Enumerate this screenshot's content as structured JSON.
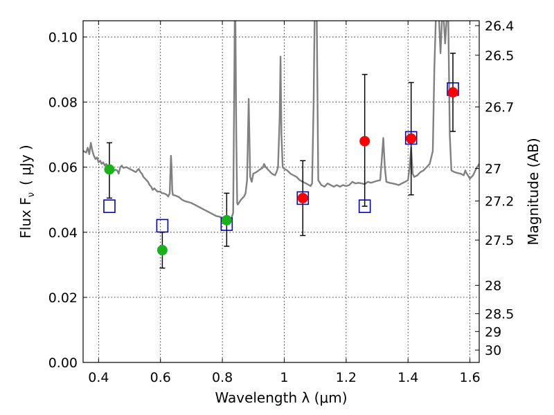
{
  "chart_data": {
    "type": "scatter",
    "xlabel": "Wavelength  λ (μm)",
    "ylabel": "Flux  F",
    "ylabel_sub": "ν",
    "ylabel_unit": "( μJy )",
    "y2label": "Magnitude (AB)",
    "xlim": [
      0.35,
      1.63
    ],
    "ylim": [
      0.0,
      0.105
    ],
    "x_ticks": [
      0.4,
      0.6,
      0.8,
      1.0,
      1.2,
      1.4,
      1.6
    ],
    "x_tick_labels": [
      "0.4",
      "0.6",
      "0.8",
      "1",
      "1.2",
      "1.4",
      "1.6"
    ],
    "y_ticks": [
      0.0,
      0.02,
      0.04,
      0.06,
      0.08,
      0.1
    ],
    "y_tick_labels": [
      "0.00",
      "0.02",
      "0.04",
      "0.06",
      "0.08",
      "0.10"
    ],
    "y2_ticks": [
      {
        "label": "26.4",
        "flux": 0.1035
      },
      {
        "label": "26.5",
        "flux": 0.0944
      },
      {
        "label": "26.7",
        "flux": 0.0785
      },
      {
        "label": "27",
        "flux": 0.0596
      },
      {
        "label": "27.2",
        "flux": 0.0496
      },
      {
        "label": "27.5",
        "flux": 0.0376
      },
      {
        "label": "28",
        "flux": 0.0237
      },
      {
        "label": "28.5",
        "flux": 0.015
      },
      {
        "label": "29",
        "flux": 0.0095
      },
      {
        "label": "30",
        "flux": 0.0038
      }
    ],
    "grid": true,
    "series": [
      {
        "marker": "circle",
        "color": "#19b319",
        "points": [
          {
            "x": 0.435,
            "y": 0.0593,
            "lo": 0.0505,
            "hi": 0.0675
          },
          {
            "x": 0.606,
            "y": 0.0345,
            "lo": 0.029,
            "hi": 0.04
          },
          {
            "x": 0.814,
            "y": 0.0437,
            "lo": 0.0357,
            "hi": 0.052
          }
        ]
      },
      {
        "marker": "circle",
        "color": "#ff0000",
        "points": [
          {
            "x": 1.06,
            "y": 0.0505,
            "lo": 0.039,
            "hi": 0.062
          },
          {
            "x": 1.26,
            "y": 0.068,
            "lo": 0.048,
            "hi": 0.0885
          },
          {
            "x": 1.41,
            "y": 0.0688,
            "lo": 0.0515,
            "hi": 0.086
          },
          {
            "x": 1.545,
            "y": 0.083,
            "lo": 0.071,
            "hi": 0.095
          }
        ]
      },
      {
        "marker": "open-square",
        "color": "#0000cc",
        "points": [
          {
            "x": 0.435,
            "y": 0.048
          },
          {
            "x": 0.606,
            "y": 0.042
          },
          {
            "x": 0.814,
            "y": 0.0425
          },
          {
            "x": 1.06,
            "y": 0.0505
          },
          {
            "x": 1.26,
            "y": 0.048
          },
          {
            "x": 1.41,
            "y": 0.069
          },
          {
            "x": 1.545,
            "y": 0.084
          }
        ]
      }
    ],
    "model_spectrum": {
      "color": "#808080",
      "points": [
        [
          0.35,
          0.065
        ],
        [
          0.36,
          0.0645
        ],
        [
          0.365,
          0.066
        ],
        [
          0.37,
          0.064
        ],
        [
          0.375,
          0.0675
        ],
        [
          0.38,
          0.065
        ],
        [
          0.385,
          0.0635
        ],
        [
          0.39,
          0.0625
        ],
        [
          0.395,
          0.063
        ],
        [
          0.4,
          0.0615
        ],
        [
          0.405,
          0.062
        ],
        [
          0.41,
          0.061
        ],
        [
          0.415,
          0.0615
        ],
        [
          0.42,
          0.0605
        ],
        [
          0.425,
          0.061
        ],
        [
          0.43,
          0.06
        ],
        [
          0.435,
          0.0605
        ],
        [
          0.44,
          0.0595
        ],
        [
          0.445,
          0.06
        ],
        [
          0.45,
          0.059
        ],
        [
          0.455,
          0.0592
        ],
        [
          0.46,
          0.059
        ],
        [
          0.465,
          0.058
        ],
        [
          0.47,
          0.06
        ],
        [
          0.475,
          0.0605
        ],
        [
          0.48,
          0.0598
        ],
        [
          0.49,
          0.06
        ],
        [
          0.5,
          0.0595
        ],
        [
          0.51,
          0.059
        ],
        [
          0.52,
          0.0585
        ],
        [
          0.53,
          0.0595
        ],
        [
          0.535,
          0.0585
        ],
        [
          0.54,
          0.058
        ],
        [
          0.545,
          0.057
        ],
        [
          0.55,
          0.0565
        ],
        [
          0.555,
          0.056
        ],
        [
          0.56,
          0.0555
        ],
        [
          0.565,
          0.0545
        ],
        [
          0.57,
          0.054
        ],
        [
          0.575,
          0.053
        ],
        [
          0.58,
          0.0535
        ],
        [
          0.585,
          0.053
        ],
        [
          0.59,
          0.0525
        ],
        [
          0.595,
          0.0525
        ],
        [
          0.6,
          0.0525
        ],
        [
          0.605,
          0.052
        ],
        [
          0.61,
          0.052
        ],
        [
          0.615,
          0.0518
        ],
        [
          0.62,
          0.0515
        ],
        [
          0.625,
          0.051
        ],
        [
          0.63,
          0.052
        ],
        [
          0.632,
          0.058
        ],
        [
          0.634,
          0.0635
        ],
        [
          0.636,
          0.06
        ],
        [
          0.638,
          0.053
        ],
        [
          0.64,
          0.0515
        ],
        [
          0.65,
          0.0512
        ],
        [
          0.66,
          0.0508
        ],
        [
          0.67,
          0.05
        ],
        [
          0.68,
          0.0495
        ],
        [
          0.69,
          0.0493
        ],
        [
          0.7,
          0.049
        ],
        [
          0.71,
          0.0485
        ],
        [
          0.72,
          0.048
        ],
        [
          0.73,
          0.0475
        ],
        [
          0.74,
          0.047
        ],
        [
          0.75,
          0.0465
        ],
        [
          0.76,
          0.046
        ],
        [
          0.77,
          0.0455
        ],
        [
          0.78,
          0.045
        ],
        [
          0.79,
          0.0448
        ],
        [
          0.8,
          0.0445
        ],
        [
          0.81,
          0.044
        ],
        [
          0.815,
          0.0438
        ],
        [
          0.82,
          0.0435
        ],
        [
          0.825,
          0.044
        ],
        [
          0.83,
          0.0445
        ],
        [
          0.835,
          0.046
        ],
        [
          0.838,
          0.08
        ],
        [
          0.84,
          0.106
        ],
        [
          0.842,
          0.106
        ],
        [
          0.845,
          0.07
        ],
        [
          0.848,
          0.049
        ],
        [
          0.85,
          0.0485
        ],
        [
          0.86,
          0.05
        ],
        [
          0.87,
          0.051
        ],
        [
          0.875,
          0.052
        ],
        [
          0.88,
          0.056
        ],
        [
          0.885,
          0.081
        ],
        [
          0.89,
          0.057
        ],
        [
          0.895,
          0.0555
        ],
        [
          0.9,
          0.058
        ],
        [
          0.91,
          0.0585
        ],
        [
          0.92,
          0.0592
        ],
        [
          0.93,
          0.0598
        ],
        [
          0.935,
          0.061
        ],
        [
          0.94,
          0.06
        ],
        [
          0.95,
          0.059
        ],
        [
          0.96,
          0.058
        ],
        [
          0.97,
          0.0575
        ],
        [
          0.975,
          0.0585
        ],
        [
          0.98,
          0.06
        ],
        [
          0.985,
          0.075
        ],
        [
          0.988,
          0.094
        ],
        [
          0.991,
          0.07
        ],
        [
          0.995,
          0.06
        ],
        [
          1.0,
          0.0595
        ],
        [
          1.01,
          0.059
        ],
        [
          1.02,
          0.058
        ],
        [
          1.03,
          0.0575
        ],
        [
          1.04,
          0.057
        ],
        [
          1.05,
          0.056
        ],
        [
          1.06,
          0.0555
        ],
        [
          1.07,
          0.055
        ],
        [
          1.08,
          0.0545
        ],
        [
          1.085,
          0.0542
        ],
        [
          1.09,
          0.055
        ],
        [
          1.095,
          0.08
        ],
        [
          1.098,
          0.106
        ],
        [
          1.105,
          0.106
        ],
        [
          1.11,
          0.056
        ],
        [
          1.12,
          0.0545
        ],
        [
          1.13,
          0.054
        ],
        [
          1.14,
          0.055
        ],
        [
          1.15,
          0.0545
        ],
        [
          1.16,
          0.054
        ],
        [
          1.17,
          0.0545
        ],
        [
          1.18,
          0.054
        ],
        [
          1.19,
          0.0545
        ],
        [
          1.2,
          0.0542
        ],
        [
          1.21,
          0.0545
        ],
        [
          1.22,
          0.0555
        ],
        [
          1.23,
          0.055
        ],
        [
          1.24,
          0.0552
        ],
        [
          1.25,
          0.055
        ],
        [
          1.26,
          0.0548
        ],
        [
          1.27,
          0.0555
        ],
        [
          1.28,
          0.0552
        ],
        [
          1.29,
          0.0555
        ],
        [
          1.3,
          0.0558
        ],
        [
          1.31,
          0.056
        ],
        [
          1.315,
          0.062
        ],
        [
          1.32,
          0.069
        ],
        [
          1.325,
          0.06
        ],
        [
          1.33,
          0.0555
        ],
        [
          1.34,
          0.0552
        ],
        [
          1.35,
          0.055
        ],
        [
          1.36,
          0.0548
        ],
        [
          1.37,
          0.0545
        ],
        [
          1.38,
          0.055
        ],
        [
          1.39,
          0.0555
        ],
        [
          1.4,
          0.056
        ],
        [
          1.405,
          0.06
        ],
        [
          1.41,
          0.066
        ],
        [
          1.415,
          0.058
        ],
        [
          1.42,
          0.057
        ],
        [
          1.43,
          0.0575
        ],
        [
          1.44,
          0.0585
        ],
        [
          1.45,
          0.059
        ],
        [
          1.46,
          0.06
        ],
        [
          1.47,
          0.061
        ],
        [
          1.48,
          0.065
        ],
        [
          1.485,
          0.09
        ],
        [
          1.49,
          0.106
        ],
        [
          1.5,
          0.106
        ],
        [
          1.505,
          0.095
        ],
        [
          1.51,
          0.106
        ],
        [
          1.515,
          0.106
        ],
        [
          1.52,
          0.098
        ],
        [
          1.525,
          0.106
        ],
        [
          1.53,
          0.106
        ],
        [
          1.535,
          0.07
        ],
        [
          1.54,
          0.059
        ],
        [
          1.55,
          0.0585
        ],
        [
          1.56,
          0.0582
        ],
        [
          1.57,
          0.058
        ],
        [
          1.58,
          0.0575
        ],
        [
          1.585,
          0.059
        ],
        [
          1.59,
          0.058
        ],
        [
          1.6,
          0.0565
        ],
        [
          1.61,
          0.0575
        ],
        [
          1.62,
          0.0595
        ],
        [
          1.63,
          0.061
        ]
      ]
    }
  }
}
